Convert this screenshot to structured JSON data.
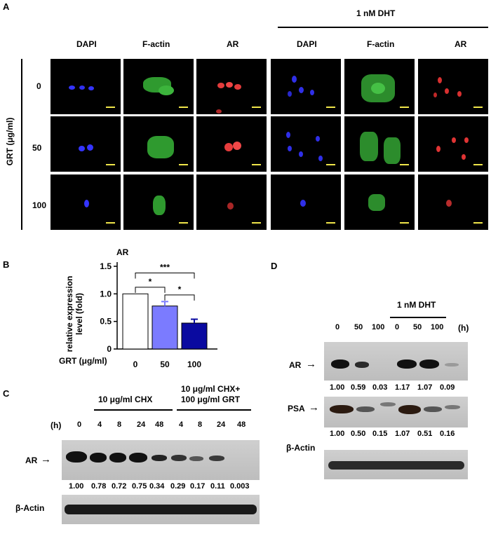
{
  "panelA": {
    "letter": "A",
    "dht_label": "1 nM   DHT",
    "col_labels": [
      "DAPI",
      "F-actin",
      "AR",
      "DAPI",
      "F-actin",
      "AR"
    ],
    "row_axis": "GRT (μg/ml)",
    "row_labels": [
      "0",
      "50",
      "100"
    ]
  },
  "panelB": {
    "letter": "B",
    "xaxis_title": "GRT (μg/ml)",
    "sig_labels": [
      "***",
      "*",
      "*"
    ]
  },
  "panelC": {
    "letter": "C",
    "group1": "10 μg/ml CHX",
    "group2_line1": "10 μg/ml CHX+",
    "group2_line2": "100 μg/ml GRT",
    "h": "(h)",
    "times": [
      "0",
      "4",
      "8",
      "24",
      "48",
      "4",
      "8",
      "24",
      "48"
    ],
    "ar": "AR",
    "arrow": "→",
    "values": [
      "1.00",
      "0.78",
      "0.72",
      "0.75",
      "0.34",
      "0.29",
      "0.17",
      "0.11",
      "0.003"
    ],
    "actin": "β-Actin"
  },
  "panelD": {
    "letter": "D",
    "dht": "1 nM DHT",
    "h": "(h)",
    "times": [
      "0",
      "50",
      "100",
      "0",
      "50",
      "100"
    ],
    "ar": "AR",
    "psa": "PSA",
    "arrow": "→",
    "ar_values": [
      "1.00",
      "0.59",
      "0.03",
      "1.17",
      "1.07",
      "0.09"
    ],
    "psa_values": [
      "1.00",
      "0.50",
      "0.15",
      "1.07",
      "0.51",
      "0.16"
    ],
    "actin": "β-Actin"
  },
  "chart_data": {
    "type": "bar",
    "title": "AR",
    "xlabel": "GRT (μg/ml)",
    "ylabel": "relative expression level (fold)",
    "categories": [
      "0",
      "50",
      "100"
    ],
    "values": [
      1.0,
      0.78,
      0.47
    ],
    "errors": [
      0.0,
      0.08,
      0.07
    ],
    "ylim": [
      0,
      1.5
    ],
    "yticks": [
      "0",
      "0.5",
      "1.0",
      "1.5"
    ],
    "bar_colors": [
      "#ffffff",
      "#7b7bff",
      "#0a0aa0"
    ]
  }
}
